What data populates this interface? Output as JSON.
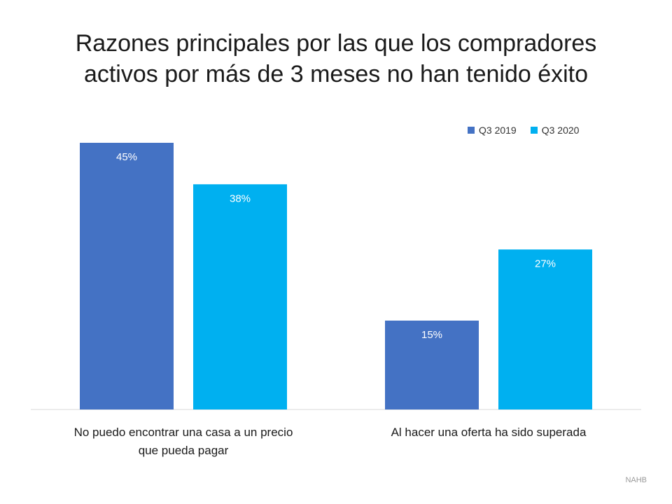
{
  "title_lines": [
    "Razones principales por las que los compradores",
    "activos por más de 3 meses no han tenido éxito"
  ],
  "source": "NAHB",
  "colors": {
    "q3_2019": "#4472C4",
    "q3_2020": "#00B0F0",
    "axis": "#d9d9d9",
    "label_text": "#ffffff"
  },
  "chart_data": {
    "type": "bar",
    "title": "Razones principales por las que los compradores activos por más de 3 meses no han tenido éxito",
    "categories": [
      [
        "No puedo encontrar una casa a un precio",
        "que pueda pagar"
      ],
      [
        "Al hacer una oferta ha sido superada"
      ]
    ],
    "series": [
      {
        "name": "Q3 2019",
        "values": [
          45,
          15
        ],
        "labels": [
          "45%",
          "15%"
        ]
      },
      {
        "name": "Q3 2020",
        "values": [
          38,
          27
        ],
        "labels": [
          "38%",
          "27%"
        ]
      }
    ],
    "ylim": [
      0,
      45
    ],
    "grid": false,
    "legend": "top-right",
    "xlabel": "",
    "ylabel": ""
  }
}
